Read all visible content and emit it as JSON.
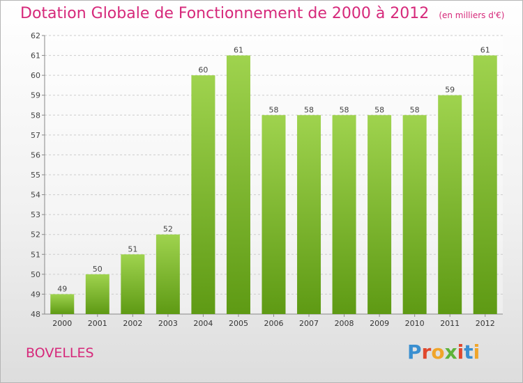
{
  "header": {
    "title": "Dotation Globale de Fonctionnement de 2000 à 2012",
    "unit": "(en milliers d'€)"
  },
  "footer": {
    "place": "BOVELLES",
    "logo_text": "Proxiti"
  },
  "colors": {
    "title": "#d6287a",
    "bar_light": "#9fd34e",
    "bar_dark": "#5e9a14",
    "logo": [
      "#3a8fd0",
      "#e0482d",
      "#f0a52a",
      "#5db33a",
      "#e0482d",
      "#3a8fd0",
      "#f0a52a"
    ]
  },
  "chart_data": {
    "type": "bar",
    "categories": [
      "2000",
      "2001",
      "2002",
      "2003",
      "2004",
      "2005",
      "2006",
      "2007",
      "2008",
      "2009",
      "2010",
      "2011",
      "2012"
    ],
    "values": [
      49,
      50,
      51,
      52,
      60,
      61,
      58,
      58,
      58,
      58,
      58,
      59,
      61
    ],
    "ylim": [
      48,
      62
    ],
    "yticks": [
      48,
      49,
      50,
      51,
      52,
      53,
      54,
      55,
      56,
      57,
      58,
      59,
      60,
      61,
      62
    ],
    "grid": true
  }
}
